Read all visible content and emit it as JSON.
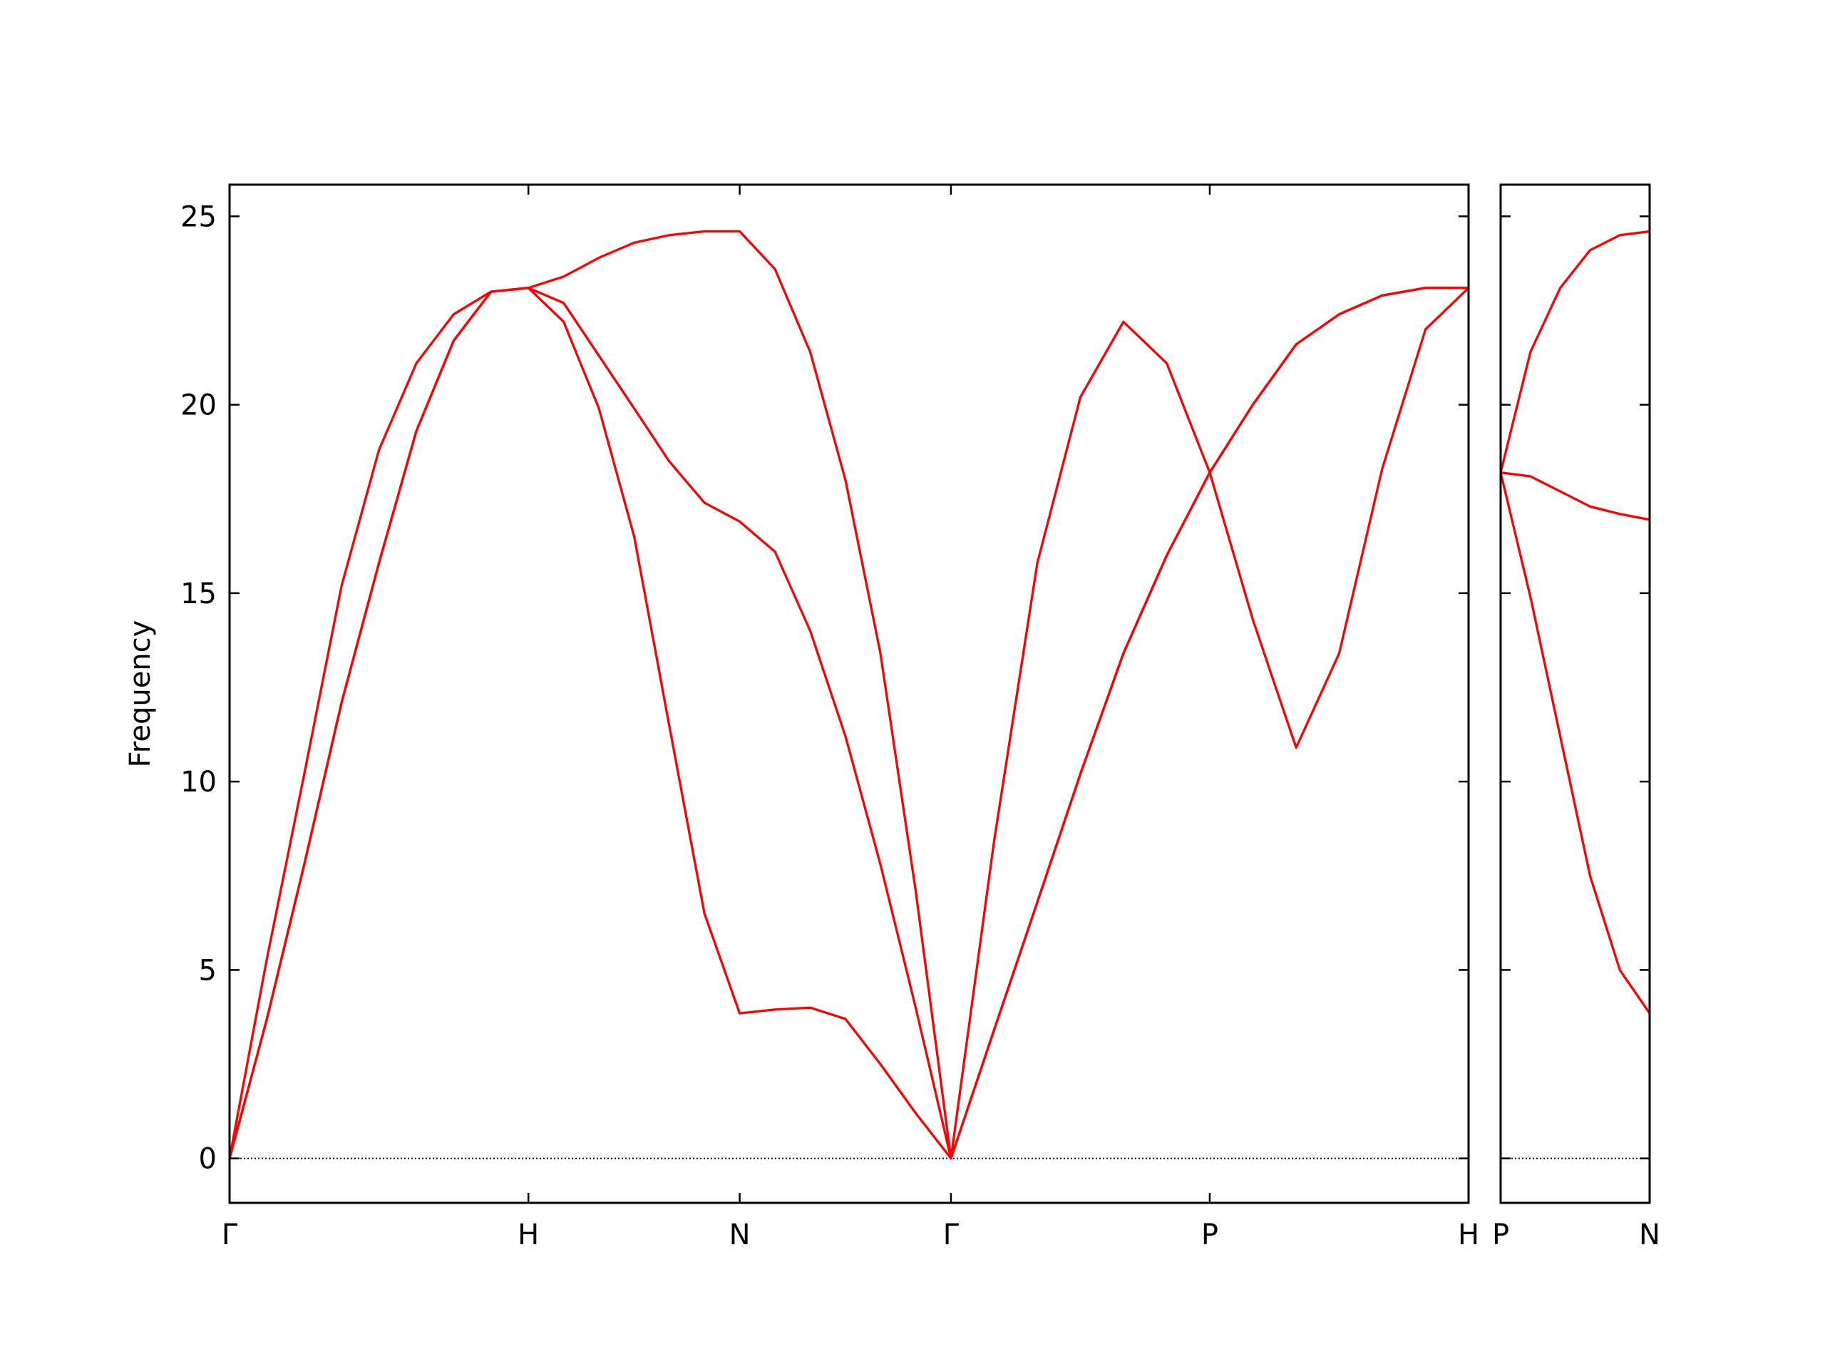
{
  "chart_data": [
    {
      "type": "line",
      "ylabel": "Frequency",
      "x": [
        0,
        0.125,
        0.25,
        0.375,
        0.5,
        0.625,
        0.75,
        0.875,
        1,
        1.118,
        1.236,
        1.354,
        1.471,
        1.589,
        1.707,
        1.825,
        1.943,
        2.061,
        2.178,
        2.296,
        2.414,
        2.558,
        2.703,
        2.847,
        2.991,
        3.136,
        3.28,
        3.424,
        3.569,
        3.713,
        3.857,
        4.002,
        4.146
      ],
      "series": [
        {
          "color": "#ff0000",
          "values": [
            0,
            3.7,
            7.8,
            12.1,
            15.8,
            19.3,
            21.7,
            23.0,
            23.1,
            22.2,
            19.9,
            16.5,
            11.5,
            6.5,
            3.85,
            3.95,
            4.0,
            3.7,
            2.5,
            1.2,
            0,
            3.4,
            6.8,
            10.2,
            13.4,
            16.0,
            18.2,
            14.3,
            10.9,
            13.4,
            18.3,
            22.0,
            23.1
          ]
        },
        {
          "color": "#ff0000",
          "values": [
            0,
            3.7,
            7.8,
            12.1,
            15.8,
            19.3,
            21.7,
            23.0,
            23.1,
            22.7,
            21.3,
            19.9,
            18.5,
            17.4,
            16.9,
            16.1,
            14.0,
            11.2,
            7.8,
            4.0,
            0,
            3.4,
            6.8,
            10.2,
            13.4,
            16.0,
            18.2,
            20.0,
            21.6,
            22.4,
            22.9,
            23.1,
            23.1
          ]
        },
        {
          "color": "#ff0000",
          "values": [
            0,
            5.3,
            10.2,
            15.2,
            18.8,
            21.1,
            22.4,
            23.0,
            23.1,
            23.4,
            23.9,
            24.3,
            24.5,
            24.6,
            24.6,
            23.6,
            21.4,
            18.0,
            13.4,
            7.1,
            0,
            8.4,
            15.8,
            20.2,
            22.2,
            21.1,
            18.2,
            20.0,
            21.6,
            22.4,
            22.9,
            23.1,
            23.1
          ]
        }
      ],
      "xlim": [
        0,
        4.146
      ],
      "ylim": [
        -1.18,
        25.84
      ],
      "xticks": [
        {
          "value": 0,
          "label": "Γ"
        },
        {
          "value": 1,
          "label": "H"
        },
        {
          "value": 1.707,
          "label": "N"
        },
        {
          "value": 2.414,
          "label": "Γ"
        },
        {
          "value": 3.28,
          "label": "P"
        },
        {
          "value": 4.146,
          "label": "H"
        }
      ],
      "yticks": [
        0,
        5,
        10,
        15,
        20,
        25
      ],
      "hline": 0,
      "hline_color": "#00008b"
    },
    {
      "type": "line",
      "x": [
        4.146,
        4.246,
        4.346,
        4.446,
        4.546,
        4.646
      ],
      "series": [
        {
          "color": "#ff0000",
          "values": [
            18.2,
            14.9,
            11.2,
            7.5,
            5.0,
            3.85
          ]
        },
        {
          "color": "#ff0000",
          "values": [
            18.2,
            18.1,
            17.7,
            17.3,
            17.1,
            16.95
          ]
        },
        {
          "color": "#ff0000",
          "values": [
            18.2,
            21.4,
            23.1,
            24.1,
            24.5,
            24.6
          ]
        }
      ],
      "xlim": [
        4.146,
        4.646
      ],
      "ylim": [
        -1.18,
        25.84
      ],
      "xticks": [
        {
          "value": 4.146,
          "label": "P"
        },
        {
          "value": 4.646,
          "label": "N"
        }
      ],
      "hline": 0,
      "hline_color": "#00008b"
    }
  ]
}
